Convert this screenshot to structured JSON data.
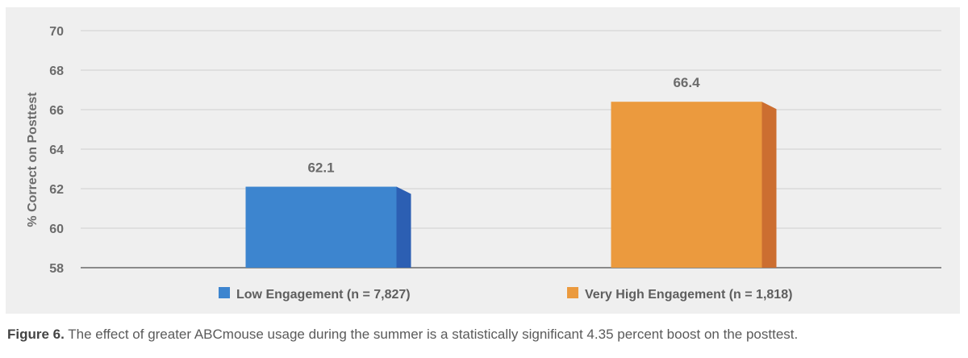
{
  "chart_data": {
    "type": "bar",
    "title": "",
    "xlabel": "",
    "ylabel": "% Correct on Posttest",
    "ylim": [
      58,
      70
    ],
    "yticks": [
      58,
      60,
      62,
      64,
      66,
      68,
      70
    ],
    "grid": true,
    "categories": [
      "Low Engagement (n = 7,827)",
      "Very High Engagement (n = 1,818)"
    ],
    "values": [
      62.1,
      66.4
    ],
    "data_labels": [
      "62.1",
      "66.4"
    ],
    "colors": [
      "#3d85cf",
      "#eb9a3e"
    ],
    "side_colors": [
      "#2c5fb3",
      "#cc6e30"
    ],
    "legend_position": "bottom"
  },
  "caption": {
    "label": "Figure 6.",
    "text": " The effect of greater ABCmouse usage during the summer is a statistically significant 4.35 percent boost on the posttest."
  }
}
